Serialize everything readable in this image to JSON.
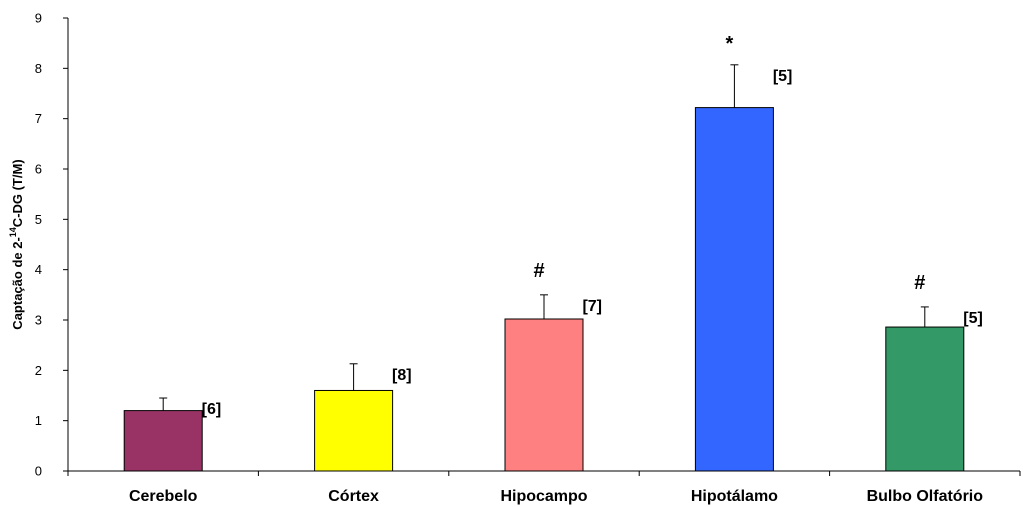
{
  "chart_data": {
    "type": "bar",
    "categories": [
      "Cerebelo",
      "Córtex",
      "Hipocampo",
      "Hipotálamo",
      "Bulbo Olfatório"
    ],
    "values": [
      1.2,
      1.6,
      3.02,
      7.22,
      2.86
    ],
    "errors": [
      0.25,
      0.53,
      0.48,
      0.85,
      0.4
    ],
    "n_labels": [
      "[6]",
      "[8]",
      "[7]",
      "[5]",
      "[5]"
    ],
    "significance": [
      "",
      "",
      "#",
      "*",
      "#"
    ],
    "colors": [
      "#993366",
      "#ffff00",
      "#ff8080",
      "#3366ff",
      "#339966"
    ],
    "ylabel_parts": [
      "Captação de 2-",
      "14",
      "C-DG (T/M)"
    ],
    "ylim": [
      0,
      9
    ],
    "yticks": [
      "0",
      "1",
      "2",
      "3",
      "4",
      "5",
      "6",
      "7",
      "8",
      "9"
    ],
    "grid": false,
    "legend": "none"
  }
}
